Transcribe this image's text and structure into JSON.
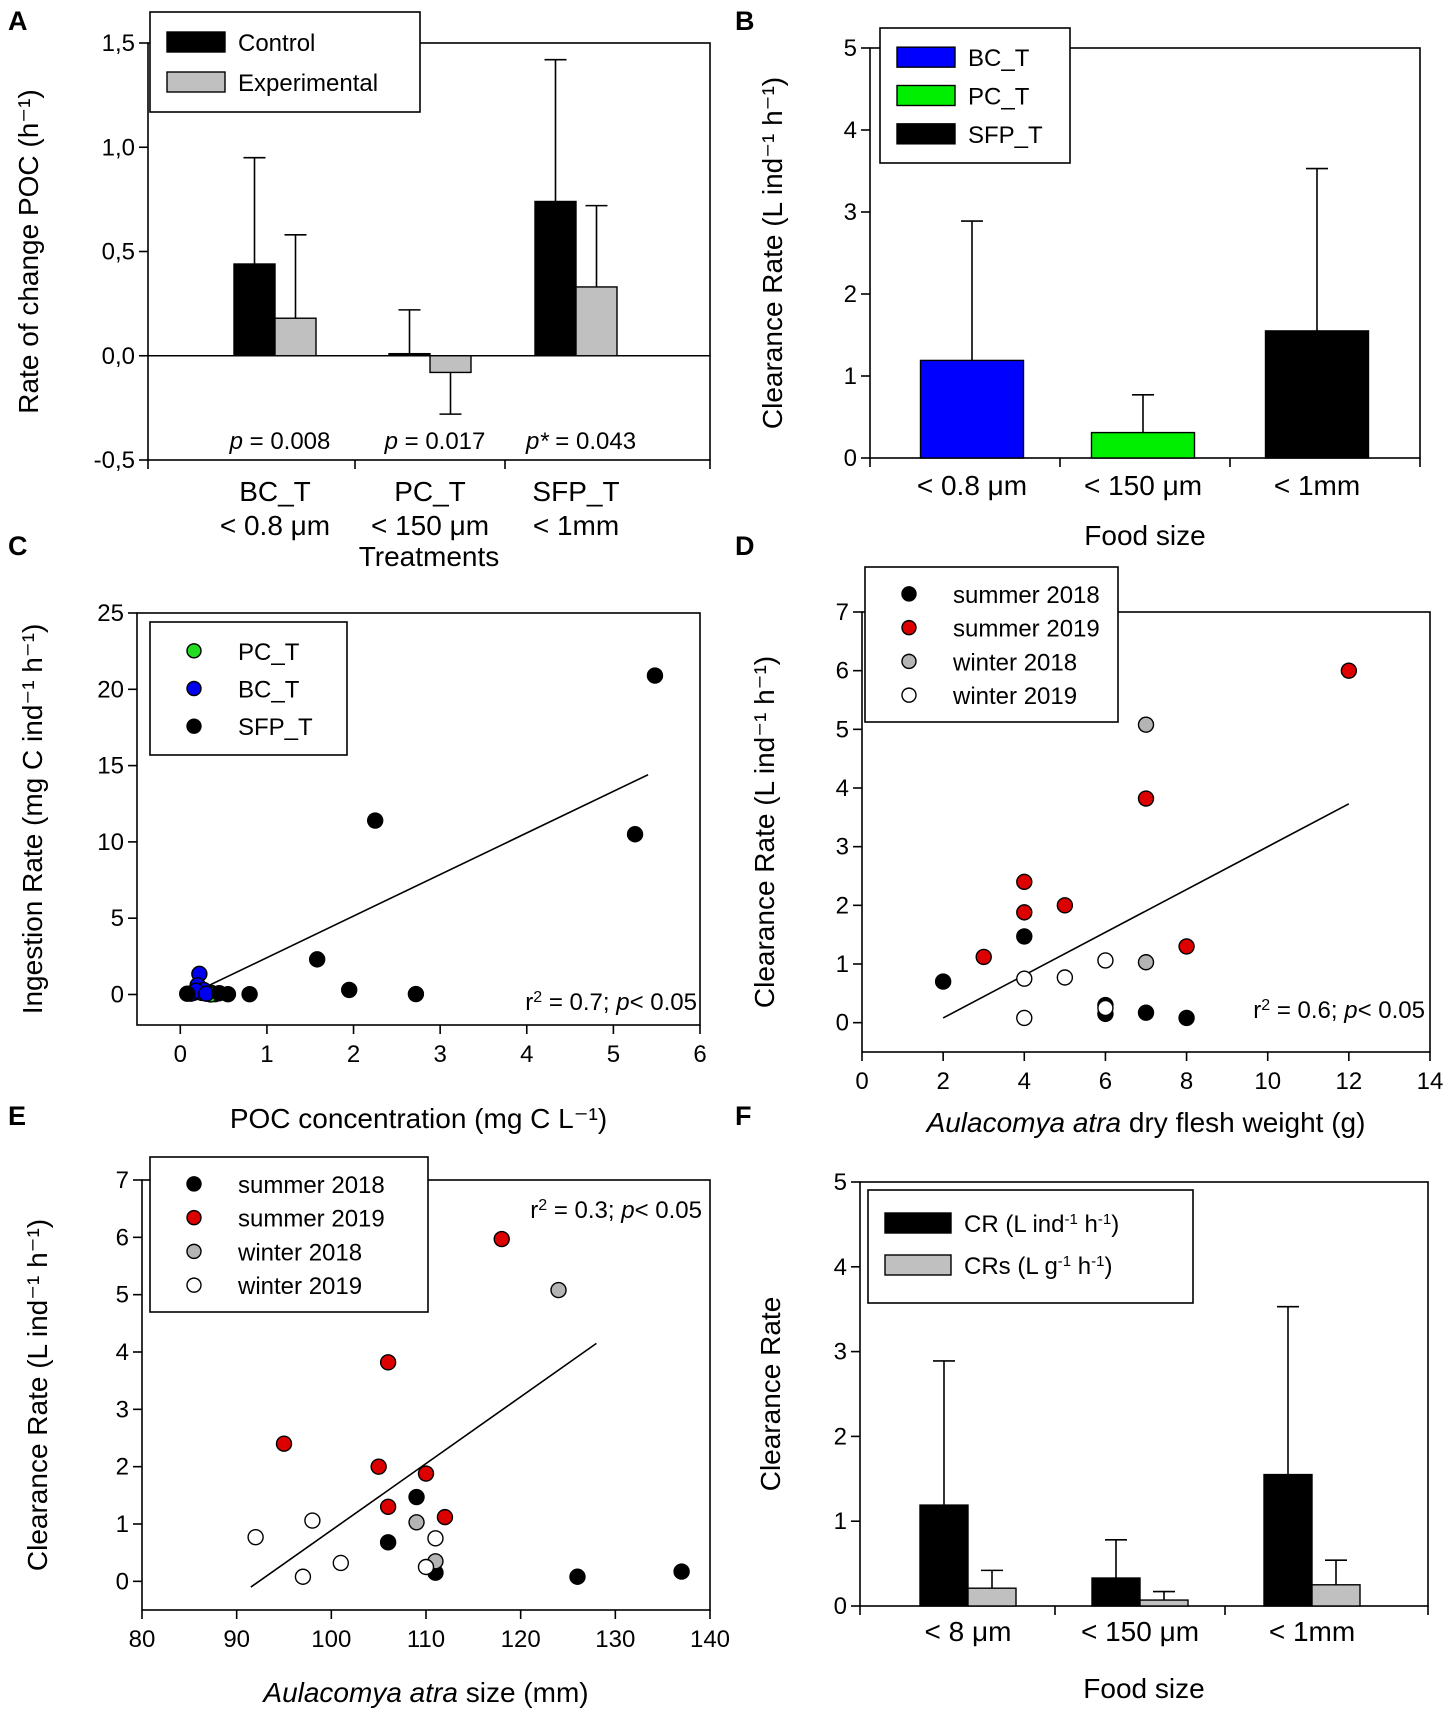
{
  "chart_data": [
    {
      "panel": "A",
      "type": "bar",
      "categories": [
        "BC_T\n< 0.8 μm",
        "PC_T\n< 150 μm",
        "SFP_T\n< 1mm"
      ],
      "xlabel": "Treatments",
      "ylabel": "Rate of change  POC (h⁻¹)",
      "ylim": [
        -0.5,
        1.5
      ],
      "yticks": [
        -0.5,
        0.0,
        0.5,
        1.0,
        1.5
      ],
      "ytick_labels": [
        "-0,5",
        "0,0",
        "0,5",
        "1,0",
        "1,5"
      ],
      "legend_position": "top-left",
      "series": [
        {
          "name": "Control",
          "color": "#000000",
          "values": [
            0.44,
            0.01,
            0.74
          ],
          "errors": [
            0.51,
            0.21,
            0.68
          ]
        },
        {
          "name": "Experimental",
          "color": "#c0c0c0",
          "values": [
            0.18,
            -0.08,
            0.33
          ],
          "errors": [
            0.4,
            0.2,
            0.39
          ]
        }
      ],
      "annotations": [
        "p = 0.008",
        "p = 0.017",
        "p* = 0.043"
      ]
    },
    {
      "panel": "B",
      "type": "bar",
      "categories": [
        "< 0.8 μm",
        "< 150 μm",
        "< 1mm"
      ],
      "xlabel": "Food size",
      "ylabel": "Clearance Rate (L ind⁻¹ h⁻¹)",
      "ylim": [
        0,
        5
      ],
      "yticks": [
        0,
        1,
        2,
        3,
        4,
        5
      ],
      "ytick_labels": [
        "0",
        "1",
        "2",
        "3",
        "4",
        "5"
      ],
      "legend_position": "top-left",
      "series": [
        {
          "name": "BC_T",
          "color": "#0000ff"
        },
        {
          "name": "PC_T",
          "color": "#00ee00"
        },
        {
          "name": "SFP_T",
          "color": "#000000"
        }
      ],
      "values": [
        1.19,
        0.31,
        1.55
      ],
      "errors": [
        1.7,
        0.46,
        1.98
      ],
      "bar_colors": [
        "#0000ff",
        "#00ee00",
        "#000000"
      ]
    },
    {
      "panel": "C",
      "type": "scatter",
      "xlabel": "POC concentration (mg C L⁻¹)",
      "ylabel": "Ingestion Rate (mg C ind⁻¹ h⁻¹)",
      "xlim": [
        -0.5,
        6
      ],
      "ylim": [
        -2,
        25
      ],
      "xticks": [
        0,
        1,
        2,
        3,
        4,
        5,
        6
      ],
      "xtick_labels": [
        "0",
        "1",
        "2",
        "3",
        "4",
        "5",
        "6"
      ],
      "yticks": [
        0,
        5,
        10,
        15,
        20,
        25
      ],
      "ytick_labels": [
        "0",
        "5",
        "10",
        "15",
        "20",
        "25"
      ],
      "legend_position": "top-left",
      "series": [
        {
          "name": "PC_T",
          "color": "#22dd22",
          "edge": "#000000",
          "points": [
            [
              0.32,
              0.05
            ],
            [
              0.36,
              0.1
            ],
            [
              0.4,
              0.02
            ],
            [
              0.3,
              0.15
            ],
            [
              0.35,
              0.0
            ]
          ]
        },
        {
          "name": "BC_T",
          "color": "#0000ee",
          "edge": "#000000",
          "points": [
            [
              0.22,
              1.35
            ],
            [
              0.2,
              0.6
            ],
            [
              0.15,
              0.1
            ],
            [
              0.25,
              0.1
            ],
            [
              0.12,
              0.05
            ],
            [
              0.27,
              0.3
            ],
            [
              0.18,
              0.25
            ],
            [
              0.3,
              0.05
            ]
          ]
        },
        {
          "name": "SFP_T",
          "color": "#000000",
          "edge": "#000000",
          "points": [
            [
              0.08,
              0.05
            ],
            [
              0.45,
              0.08
            ],
            [
              0.55,
              0.02
            ],
            [
              0.8,
              0.02
            ],
            [
              1.58,
              2.3
            ],
            [
              1.95,
              0.3
            ],
            [
              2.25,
              11.4
            ],
            [
              2.72,
              0.03
            ],
            [
              5.25,
              10.5
            ],
            [
              5.48,
              20.9
            ]
          ]
        }
      ],
      "regression": {
        "x": [
          0.15,
          5.4
        ],
        "y": [
          0.1,
          14.4
        ]
      },
      "annotation": "r² = 0.7; p< 0.05"
    },
    {
      "panel": "D",
      "type": "scatter",
      "xlabel": "Aulacomya atra dry flesh weight (g)",
      "ylabel": "Clearance Rate (L ind⁻¹ h⁻¹)",
      "xlim": [
        0,
        14
      ],
      "ylim": [
        -0.5,
        7
      ],
      "xticks": [
        0,
        2,
        4,
        6,
        8,
        10,
        12,
        14
      ],
      "xtick_labels": [
        "0",
        "2",
        "4",
        "6",
        "8",
        "10",
        "12",
        "14"
      ],
      "yticks": [
        0,
        1,
        2,
        3,
        4,
        5,
        6,
        7
      ],
      "ytick_labels": [
        "0",
        "1",
        "2",
        "3",
        "4",
        "5",
        "6",
        "7"
      ],
      "legend_position": "top-left",
      "series": [
        {
          "name": "summer 2018",
          "color": "#000000",
          "edge": "#000000",
          "points": [
            [
              2,
              0.7
            ],
            [
              4,
              1.47
            ],
            [
              6,
              0.15
            ],
            [
              6,
              0.3
            ],
            [
              7,
              0.17
            ],
            [
              8,
              0.08
            ]
          ]
        },
        {
          "name": "summer 2019",
          "color": "#dd0000",
          "edge": "#000000",
          "points": [
            [
              3,
              1.12
            ],
            [
              4,
              2.4
            ],
            [
              4,
              1.88
            ],
            [
              5,
              2.0
            ],
            [
              7,
              3.82
            ],
            [
              8,
              1.3
            ],
            [
              12,
              6.0
            ]
          ]
        },
        {
          "name": "winter 2018",
          "color": "#b4b4b4",
          "edge": "#000000",
          "points": [
            [
              7,
              5.08
            ],
            [
              7,
              1.03
            ]
          ]
        },
        {
          "name": "winter 2019",
          "color": "#ffffff",
          "edge": "#000000",
          "points": [
            [
              4,
              0.75
            ],
            [
              4,
              0.08
            ],
            [
              5,
              0.77
            ],
            [
              6,
              1.06
            ],
            [
              6,
              0.25
            ]
          ]
        }
      ],
      "regression": {
        "x": [
          2,
          12
        ],
        "y": [
          0.08,
          3.73
        ]
      },
      "annotation": "r² = 0.6; p< 0.05"
    },
    {
      "panel": "E",
      "type": "scatter",
      "xlabel": "Aulacomya atra size (mm)",
      "ylabel": "Clearance Rate (L ind⁻¹ h⁻¹)",
      "xlim": [
        80,
        140
      ],
      "ylim": [
        -0.5,
        7
      ],
      "xticks": [
        80,
        90,
        100,
        110,
        120,
        130,
        140
      ],
      "xtick_labels": [
        "80",
        "90",
        "100",
        "110",
        "120",
        "130",
        "140"
      ],
      "yticks": [
        0,
        1,
        2,
        3,
        4,
        5,
        6,
        7
      ],
      "ytick_labels": [
        "0",
        "1",
        "2",
        "3",
        "4",
        "5",
        "6",
        "7"
      ],
      "legend_position": "top-left",
      "series": [
        {
          "name": "summer 2018",
          "color": "#000000",
          "edge": "#000000",
          "points": [
            [
              106,
              0.68
            ],
            [
              109,
              1.47
            ],
            [
              111,
              0.15
            ],
            [
              126,
              0.08
            ],
            [
              137,
              0.17
            ]
          ]
        },
        {
          "name": "summer 2019",
          "color": "#dd0000",
          "edge": "#000000",
          "points": [
            [
              95,
              2.4
            ],
            [
              105,
              2.0
            ],
            [
              106,
              3.82
            ],
            [
              106,
              1.3
            ],
            [
              110,
              1.88
            ],
            [
              112,
              1.12
            ],
            [
              118,
              5.97
            ]
          ]
        },
        {
          "name": "winter 2018",
          "color": "#b4b4b4",
          "edge": "#000000",
          "points": [
            [
              109,
              1.03
            ],
            [
              111,
              0.35
            ],
            [
              124,
              5.08
            ]
          ]
        },
        {
          "name": "winter 2019",
          "color": "#ffffff",
          "edge": "#000000",
          "points": [
            [
              92,
              0.77
            ],
            [
              97,
              0.08
            ],
            [
              98,
              1.06
            ],
            [
              101,
              0.32
            ],
            [
              110,
              0.25
            ],
            [
              111,
              0.75
            ]
          ]
        }
      ],
      "regression": {
        "x": [
          91.5,
          128
        ],
        "y": [
          -0.1,
          4.15
        ]
      },
      "annotation": "r² = 0.3; p< 0.05"
    },
    {
      "panel": "F",
      "type": "bar",
      "categories": [
        "< 8 μm",
        "< 150 μm",
        "< 1mm"
      ],
      "xlabel": "Food size",
      "ylabel": "Clearance Rate",
      "ylim": [
        0,
        5
      ],
      "yticks": [
        0,
        1,
        2,
        3,
        4,
        5
      ],
      "ytick_labels": [
        "0",
        "1",
        "2",
        "3",
        "4",
        "5"
      ],
      "legend_position": "top-left",
      "series": [
        {
          "name": "CR (L ind⁻¹ h⁻¹)",
          "color": "#000000",
          "values": [
            1.19,
            0.33,
            1.55
          ],
          "errors": [
            1.7,
            0.45,
            1.98
          ]
        },
        {
          "name": "CRs (L g⁻¹ h⁻¹)",
          "color": "#c0c0c0",
          "values": [
            0.21,
            0.07,
            0.25
          ],
          "errors": [
            0.21,
            0.1,
            0.29
          ]
        }
      ]
    }
  ],
  "panel_labels": [
    "A",
    "B",
    "C",
    "D",
    "E",
    "F"
  ]
}
